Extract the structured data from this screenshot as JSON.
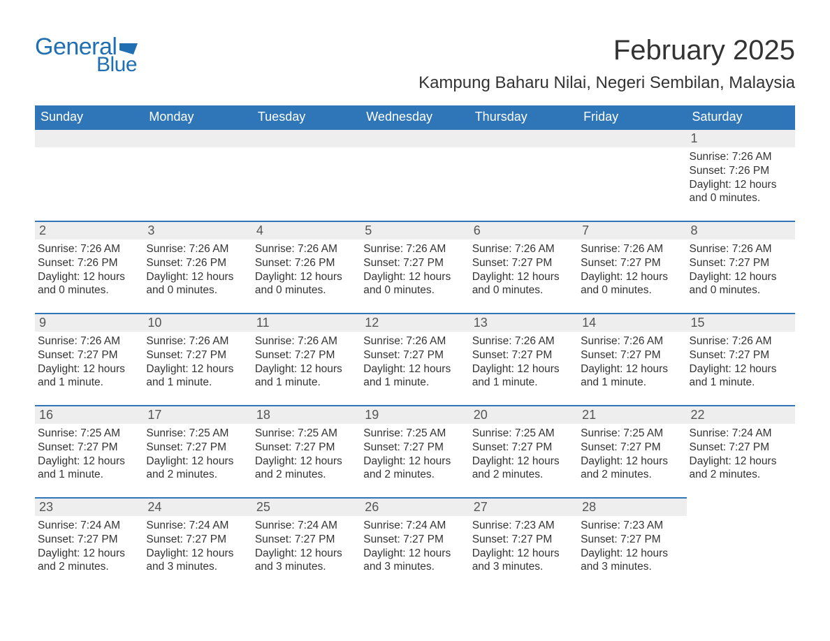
{
  "brand": {
    "general": "General",
    "blue": "Blue",
    "flag_color": "#1f6fb2"
  },
  "title": "February 2025",
  "location": "Kampung Baharu Nilai, Negeri Sembilan, Malaysia",
  "colors": {
    "header_bg": "#2f76b8",
    "header_text": "#ffffff",
    "row_accent": "#2f76b8",
    "daynum_bg": "#eeeeee",
    "text": "#333333",
    "brand": "#1f6fb2"
  },
  "weekdays": [
    "Sunday",
    "Monday",
    "Tuesday",
    "Wednesday",
    "Thursday",
    "Friday",
    "Saturday"
  ],
  "weeks": [
    [
      {
        "blank": true
      },
      {
        "blank": true
      },
      {
        "blank": true
      },
      {
        "blank": true
      },
      {
        "blank": true
      },
      {
        "blank": true
      },
      {
        "day": "1",
        "sunrise": "Sunrise: 7:26 AM",
        "sunset": "Sunset: 7:26 PM",
        "daylight": "Daylight: 12 hours and 0 minutes."
      }
    ],
    [
      {
        "day": "2",
        "sunrise": "Sunrise: 7:26 AM",
        "sunset": "Sunset: 7:26 PM",
        "daylight": "Daylight: 12 hours and 0 minutes."
      },
      {
        "day": "3",
        "sunrise": "Sunrise: 7:26 AM",
        "sunset": "Sunset: 7:26 PM",
        "daylight": "Daylight: 12 hours and 0 minutes."
      },
      {
        "day": "4",
        "sunrise": "Sunrise: 7:26 AM",
        "sunset": "Sunset: 7:26 PM",
        "daylight": "Daylight: 12 hours and 0 minutes."
      },
      {
        "day": "5",
        "sunrise": "Sunrise: 7:26 AM",
        "sunset": "Sunset: 7:27 PM",
        "daylight": "Daylight: 12 hours and 0 minutes."
      },
      {
        "day": "6",
        "sunrise": "Sunrise: 7:26 AM",
        "sunset": "Sunset: 7:27 PM",
        "daylight": "Daylight: 12 hours and 0 minutes."
      },
      {
        "day": "7",
        "sunrise": "Sunrise: 7:26 AM",
        "sunset": "Sunset: 7:27 PM",
        "daylight": "Daylight: 12 hours and 0 minutes."
      },
      {
        "day": "8",
        "sunrise": "Sunrise: 7:26 AM",
        "sunset": "Sunset: 7:27 PM",
        "daylight": "Daylight: 12 hours and 0 minutes."
      }
    ],
    [
      {
        "day": "9",
        "sunrise": "Sunrise: 7:26 AM",
        "sunset": "Sunset: 7:27 PM",
        "daylight": "Daylight: 12 hours and 1 minute."
      },
      {
        "day": "10",
        "sunrise": "Sunrise: 7:26 AM",
        "sunset": "Sunset: 7:27 PM",
        "daylight": "Daylight: 12 hours and 1 minute."
      },
      {
        "day": "11",
        "sunrise": "Sunrise: 7:26 AM",
        "sunset": "Sunset: 7:27 PM",
        "daylight": "Daylight: 12 hours and 1 minute."
      },
      {
        "day": "12",
        "sunrise": "Sunrise: 7:26 AM",
        "sunset": "Sunset: 7:27 PM",
        "daylight": "Daylight: 12 hours and 1 minute."
      },
      {
        "day": "13",
        "sunrise": "Sunrise: 7:26 AM",
        "sunset": "Sunset: 7:27 PM",
        "daylight": "Daylight: 12 hours and 1 minute."
      },
      {
        "day": "14",
        "sunrise": "Sunrise: 7:26 AM",
        "sunset": "Sunset: 7:27 PM",
        "daylight": "Daylight: 12 hours and 1 minute."
      },
      {
        "day": "15",
        "sunrise": "Sunrise: 7:26 AM",
        "sunset": "Sunset: 7:27 PM",
        "daylight": "Daylight: 12 hours and 1 minute."
      }
    ],
    [
      {
        "day": "16",
        "sunrise": "Sunrise: 7:25 AM",
        "sunset": "Sunset: 7:27 PM",
        "daylight": "Daylight: 12 hours and 1 minute."
      },
      {
        "day": "17",
        "sunrise": "Sunrise: 7:25 AM",
        "sunset": "Sunset: 7:27 PM",
        "daylight": "Daylight: 12 hours and 2 minutes."
      },
      {
        "day": "18",
        "sunrise": "Sunrise: 7:25 AM",
        "sunset": "Sunset: 7:27 PM",
        "daylight": "Daylight: 12 hours and 2 minutes."
      },
      {
        "day": "19",
        "sunrise": "Sunrise: 7:25 AM",
        "sunset": "Sunset: 7:27 PM",
        "daylight": "Daylight: 12 hours and 2 minutes."
      },
      {
        "day": "20",
        "sunrise": "Sunrise: 7:25 AM",
        "sunset": "Sunset: 7:27 PM",
        "daylight": "Daylight: 12 hours and 2 minutes."
      },
      {
        "day": "21",
        "sunrise": "Sunrise: 7:25 AM",
        "sunset": "Sunset: 7:27 PM",
        "daylight": "Daylight: 12 hours and 2 minutes."
      },
      {
        "day": "22",
        "sunrise": "Sunrise: 7:24 AM",
        "sunset": "Sunset: 7:27 PM",
        "daylight": "Daylight: 12 hours and 2 minutes."
      }
    ],
    [
      {
        "day": "23",
        "sunrise": "Sunrise: 7:24 AM",
        "sunset": "Sunset: 7:27 PM",
        "daylight": "Daylight: 12 hours and 2 minutes."
      },
      {
        "day": "24",
        "sunrise": "Sunrise: 7:24 AM",
        "sunset": "Sunset: 7:27 PM",
        "daylight": "Daylight: 12 hours and 3 minutes."
      },
      {
        "day": "25",
        "sunrise": "Sunrise: 7:24 AM",
        "sunset": "Sunset: 7:27 PM",
        "daylight": "Daylight: 12 hours and 3 minutes."
      },
      {
        "day": "26",
        "sunrise": "Sunrise: 7:24 AM",
        "sunset": "Sunset: 7:27 PM",
        "daylight": "Daylight: 12 hours and 3 minutes."
      },
      {
        "day": "27",
        "sunrise": "Sunrise: 7:23 AM",
        "sunset": "Sunset: 7:27 PM",
        "daylight": "Daylight: 12 hours and 3 minutes."
      },
      {
        "day": "28",
        "sunrise": "Sunrise: 7:23 AM",
        "sunset": "Sunset: 7:27 PM",
        "daylight": "Daylight: 12 hours and 3 minutes."
      },
      {
        "blank": true,
        "noBar": true
      }
    ]
  ]
}
